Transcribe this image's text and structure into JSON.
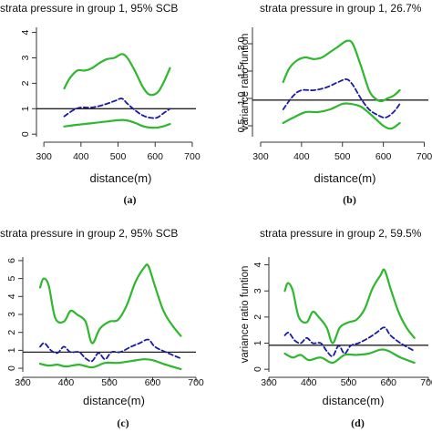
{
  "figure": {
    "panels": [
      {
        "id": "a",
        "caption": "(a)",
        "title": "strata pressure in group 1, 95% SCB",
        "xlabel": "distance(m)",
        "ylabel": "",
        "ytick_labels": [
          "0",
          "1",
          "2",
          "3",
          "4"
        ]
      },
      {
        "id": "b",
        "caption": "(b)",
        "title": "strata pressure in group 1, 26.7%",
        "xlabel": "distance(m)",
        "ylabel": "variance ratio funtion",
        "ytick_labels": [
          "0.5",
          "1.0",
          "1.5",
          "2.0"
        ]
      },
      {
        "id": "c",
        "caption": "(c)",
        "title": "strata pressure in group 2, 95% SCB",
        "xlabel": "distance(m)",
        "ylabel": "",
        "ytick_labels": [
          "0",
          "1",
          "2",
          "3",
          "4",
          "5",
          "6"
        ]
      },
      {
        "id": "d",
        "caption": "(d)",
        "title": "strata pressure in group 2, 59.5%",
        "xlabel": "distance(m)",
        "ylabel": "variance ratio funtion",
        "ytick_labels": [
          "0",
          "1",
          "2",
          "3",
          "4"
        ]
      }
    ],
    "colors": {
      "band": "#2db82d",
      "estimate": "#1a1aa6",
      "reference": "#222222",
      "axis": "#333333"
    }
  },
  "chart_data": [
    {
      "type": "line",
      "title": "strata pressure in group 1, 95% SCB",
      "xlabel": "distance(m)",
      "ylabel": "",
      "x_ticks": [
        300,
        400,
        500,
        600,
        700
      ],
      "xlim": [
        280,
        710
      ],
      "y_ticks": [
        0,
        1,
        2,
        3,
        4
      ],
      "ylim": [
        -0.1,
        4.2
      ],
      "reference_line": 1.0,
      "series": [
        {
          "style": "band-upper",
          "x": [
            355,
            370,
            390,
            410,
            430,
            450,
            470,
            490,
            510,
            525,
            545,
            565,
            580,
            595,
            610,
            625,
            640
          ],
          "y": [
            1.8,
            2.2,
            2.5,
            2.5,
            2.6,
            2.8,
            2.95,
            3.0,
            3.15,
            3.0,
            2.5,
            1.9,
            1.6,
            1.55,
            1.7,
            2.1,
            2.6
          ]
        },
        {
          "style": "estimate",
          "x": [
            355,
            380,
            400,
            430,
            460,
            490,
            510,
            525,
            545,
            565,
            585,
            605,
            625,
            640
          ],
          "y": [
            0.7,
            0.95,
            1.05,
            1.05,
            1.15,
            1.3,
            1.4,
            1.2,
            0.95,
            0.75,
            0.65,
            0.65,
            0.85,
            1.0
          ]
        },
        {
          "style": "band-lower",
          "x": [
            355,
            380,
            410,
            440,
            470,
            500,
            520,
            545,
            570,
            600,
            620,
            640
          ],
          "y": [
            0.3,
            0.35,
            0.4,
            0.45,
            0.5,
            0.55,
            0.55,
            0.45,
            0.3,
            0.25,
            0.3,
            0.4
          ]
        }
      ]
    },
    {
      "type": "line",
      "title": "strata pressure in group 1, 26.7%",
      "xlabel": "distance(m)",
      "ylabel": "variance ratio funtion",
      "x_ticks": [
        300,
        400,
        500,
        600,
        700
      ],
      "xlim": [
        280,
        710
      ],
      "y_ticks": [
        0.5,
        1.0,
        1.5,
        2.0
      ],
      "ylim": [
        0.3,
        2.3
      ],
      "reference_line": 0.97,
      "series": [
        {
          "style": "band-upper",
          "x": [
            355,
            370,
            390,
            410,
            430,
            450,
            470,
            490,
            510,
            525,
            545,
            565,
            580,
            595,
            610,
            625,
            640
          ],
          "y": [
            1.3,
            1.55,
            1.7,
            1.75,
            1.72,
            1.75,
            1.85,
            1.95,
            2.05,
            2.0,
            1.6,
            1.15,
            1.0,
            0.95,
            1.0,
            1.05,
            1.15
          ]
        },
        {
          "style": "estimate",
          "x": [
            355,
            380,
            400,
            430,
            460,
            490,
            510,
            525,
            545,
            565,
            585,
            605,
            625,
            640
          ],
          "y": [
            0.8,
            1.05,
            1.15,
            1.15,
            1.2,
            1.3,
            1.35,
            1.25,
            1.0,
            0.8,
            0.7,
            0.65,
            0.75,
            0.9
          ]
        },
        {
          "style": "band-lower",
          "x": [
            355,
            380,
            410,
            440,
            470,
            500,
            520,
            545,
            570,
            600,
            620,
            640
          ],
          "y": [
            0.55,
            0.65,
            0.75,
            0.75,
            0.8,
            0.9,
            0.9,
            0.85,
            0.7,
            0.5,
            0.45,
            0.55
          ]
        }
      ]
    },
    {
      "type": "line",
      "title": "strata pressure in group 2, 95% SCB",
      "xlabel": "distance(m)",
      "ylabel": "",
      "x_ticks": [
        300,
        400,
        500,
        600,
        700
      ],
      "xlim": [
        300,
        700
      ],
      "y_ticks": [
        0,
        1,
        2,
        3,
        4,
        5,
        6
      ],
      "ylim": [
        -0.2,
        6.2
      ],
      "reference_line": 0.9,
      "series": [
        {
          "style": "band-upper",
          "x": [
            340,
            348,
            360,
            375,
            395,
            410,
            425,
            445,
            460,
            478,
            500,
            520,
            540,
            560,
            580,
            590,
            605,
            625,
            645,
            665
          ],
          "y": [
            4.5,
            5.0,
            4.6,
            2.8,
            2.6,
            3.2,
            3.0,
            2.6,
            1.4,
            2.2,
            2.6,
            2.7,
            3.5,
            4.8,
            5.6,
            5.7,
            4.6,
            3.2,
            2.4,
            1.8
          ]
        },
        {
          "style": "estimate",
          "x": [
            340,
            350,
            365,
            380,
            395,
            410,
            430,
            445,
            460,
            475,
            490,
            505,
            525,
            550,
            570,
            590,
            605,
            630,
            665
          ],
          "y": [
            1.2,
            1.4,
            1.0,
            0.85,
            1.2,
            0.9,
            0.9,
            0.55,
            0.4,
            0.85,
            0.5,
            0.9,
            0.9,
            1.2,
            1.4,
            1.6,
            1.2,
            0.9,
            0.55
          ]
        },
        {
          "style": "band-lower",
          "x": [
            340,
            360,
            380,
            400,
            430,
            460,
            490,
            520,
            550,
            580,
            600,
            630,
            665
          ],
          "y": [
            0.25,
            0.15,
            0.2,
            0.1,
            0.2,
            0.05,
            0.3,
            0.3,
            0.4,
            0.5,
            0.45,
            0.2,
            -0.05
          ]
        }
      ]
    },
    {
      "type": "line",
      "title": "strata pressure in group 2, 59.5%",
      "xlabel": "distance(m)",
      "ylabel": "variance ratio funtion",
      "x_ticks": [
        300,
        400,
        500,
        600,
        700
      ],
      "xlim": [
        300,
        700
      ],
      "y_ticks": [
        0,
        1,
        2,
        3,
        4
      ],
      "ylim": [
        -0.1,
        4.3
      ],
      "reference_line": 0.92,
      "series": [
        {
          "style": "band-upper",
          "x": [
            340,
            348,
            360,
            375,
            395,
            410,
            425,
            445,
            460,
            478,
            500,
            520,
            540,
            560,
            580,
            590,
            605,
            625,
            645,
            665
          ],
          "y": [
            3.0,
            3.3,
            3.0,
            2.0,
            1.8,
            2.2,
            2.0,
            1.6,
            1.0,
            1.6,
            1.8,
            1.9,
            2.3,
            3.1,
            3.6,
            3.8,
            3.1,
            2.2,
            1.6,
            1.2
          ]
        },
        {
          "style": "estimate",
          "x": [
            340,
            350,
            365,
            380,
            395,
            410,
            430,
            445,
            460,
            475,
            490,
            505,
            525,
            550,
            570,
            590,
            605,
            630,
            665
          ],
          "y": [
            1.3,
            1.4,
            1.1,
            1.0,
            1.2,
            1.0,
            1.0,
            0.7,
            0.5,
            0.9,
            0.6,
            0.9,
            1.0,
            1.2,
            1.4,
            1.6,
            1.3,
            1.0,
            0.7
          ]
        },
        {
          "style": "band-lower",
          "x": [
            340,
            360,
            380,
            400,
            430,
            460,
            490,
            520,
            550,
            580,
            600,
            630,
            665
          ],
          "y": [
            0.6,
            0.45,
            0.55,
            0.35,
            0.45,
            0.25,
            0.55,
            0.55,
            0.6,
            0.75,
            0.7,
            0.45,
            0.25
          ]
        }
      ]
    }
  ]
}
